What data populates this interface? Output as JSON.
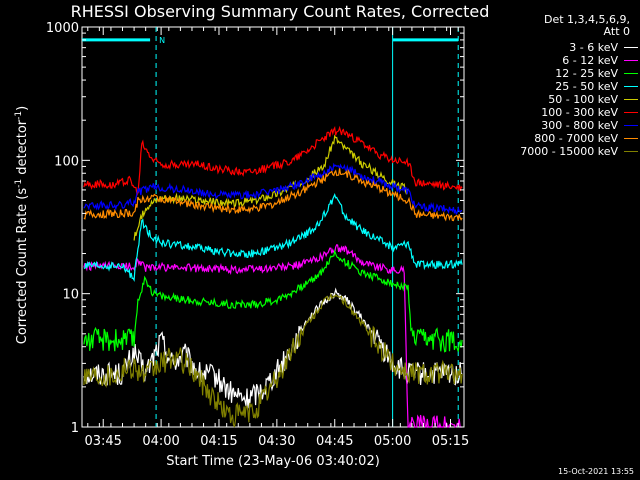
{
  "header": {
    "title": "RHESSI Observing Summary Count Rates, Corrected",
    "det_line1": "Det 1,3,4,5,6,9,",
    "det_line2": "Att 0"
  },
  "footer": {
    "stamp": "15-Oct-2021 13:55"
  },
  "axes": {
    "ylabel_main": "Corrected Count Rate (s",
    "ylabel_exp1": "-1",
    "ylabel_mid": " detector",
    "ylabel_exp2": "-1",
    "ylabel_end": ")",
    "xlabel": "Start Time (23-May-06 03:40:02)"
  },
  "chart_data": {
    "type": "line",
    "title": "RHESSI Observing Summary Count Rates, Corrected",
    "xlabel": "Start Time (23-May-06 03:40:02)",
    "ylabel": "Corrected Count Rate (s-1 detector-1)",
    "yscale": "log",
    "xlim_minutes": [
      219.5,
      318.5
    ],
    "ylim": [
      1,
      1000
    ],
    "x_ticks": [
      {
        "m": 225,
        "label": "03:45"
      },
      {
        "m": 240,
        "label": "04:00"
      },
      {
        "m": 255,
        "label": "04:15"
      },
      {
        "m": 270,
        "label": "04:30"
      },
      {
        "m": 285,
        "label": "04:45"
      },
      {
        "m": 300,
        "label": "05:00"
      },
      {
        "m": 315,
        "label": "05:15"
      }
    ],
    "y_ticks": [
      {
        "v": 1,
        "label": "1"
      },
      {
        "v": 10,
        "label": "10"
      },
      {
        "v": 100,
        "label": "100"
      },
      {
        "v": 1000,
        "label": "1000"
      }
    ],
    "night_flag": {
      "label": "N",
      "x_end": 238.7,
      "y": 800,
      "color": "#00ffff"
    },
    "flag_bar2": {
      "x_start": 300,
      "x_end": 317,
      "y": 800,
      "color": "#00ffff"
    },
    "markers": [
      {
        "x": 238.7,
        "style": "dashed",
        "color": "#00ffff"
      },
      {
        "x": 300,
        "style": "solid",
        "color": "#00ffff"
      },
      {
        "x": 317,
        "style": "dashed",
        "color": "#00ffff"
      }
    ],
    "series": [
      {
        "name": "3 - 6 keV",
        "color": "#ffffff",
        "points": [
          [
            220,
            2.5
          ],
          [
            226,
            2.5
          ],
          [
            230,
            2.5
          ],
          [
            233,
            3.6
          ],
          [
            236,
            2.5
          ],
          [
            240,
            4.5
          ],
          [
            243,
            3.0
          ],
          [
            246,
            3.5
          ],
          [
            250,
            2.5
          ],
          [
            254,
            2.4
          ],
          [
            258,
            1.8
          ],
          [
            262,
            1.6
          ],
          [
            266,
            1.9
          ],
          [
            270,
            2.6
          ],
          [
            274,
            4
          ],
          [
            278,
            6.5
          ],
          [
            282,
            8.5
          ],
          [
            285,
            10.2
          ],
          [
            288,
            9
          ],
          [
            292,
            6.5
          ],
          [
            296,
            4.5
          ],
          [
            300,
            3.0
          ],
          [
            302,
            2.7
          ],
          [
            304,
            2.5
          ],
          [
            318,
            2.5
          ]
        ]
      },
      {
        "name": "6 - 12 keV",
        "color": "#ff00ff",
        "points": [
          [
            220,
            16
          ],
          [
            233,
            16
          ],
          [
            234,
            18
          ],
          [
            236,
            15.5
          ],
          [
            240,
            15.8
          ],
          [
            250,
            15.5
          ],
          [
            260,
            15.2
          ],
          [
            268,
            15.5
          ],
          [
            274,
            16
          ],
          [
            280,
            18
          ],
          [
            284,
            21
          ],
          [
            286,
            22
          ],
          [
            288,
            21
          ],
          [
            292,
            17.5
          ],
          [
            296,
            16
          ],
          [
            300,
            15
          ],
          [
            303,
            15
          ],
          [
            304,
            1
          ],
          [
            318,
            1
          ]
        ]
      },
      {
        "name": "12 - 25 keV",
        "color": "#00ff00",
        "points": [
          [
            220,
            4.5
          ],
          [
            228,
            4.5
          ],
          [
            233,
            4.5
          ],
          [
            234,
            9
          ],
          [
            236,
            13
          ],
          [
            238,
            10
          ],
          [
            242,
            9.3
          ],
          [
            250,
            8.8
          ],
          [
            258,
            8.3
          ],
          [
            264,
            8.3
          ],
          [
            270,
            9
          ],
          [
            276,
            11
          ],
          [
            281,
            14
          ],
          [
            285,
            20
          ],
          [
            288,
            17
          ],
          [
            292,
            14.5
          ],
          [
            296,
            13.2
          ],
          [
            300,
            11.8
          ],
          [
            304,
            11
          ],
          [
            305,
            4.5
          ],
          [
            318,
            4.5
          ]
        ]
      },
      {
        "name": "25 - 50 keV",
        "color": "#00ffff",
        "points": [
          [
            220,
            16
          ],
          [
            224,
            16
          ],
          [
            230,
            16
          ],
          [
            232,
            14
          ],
          [
            233,
            13
          ],
          [
            235,
            35
          ],
          [
            237,
            28
          ],
          [
            240,
            24
          ],
          [
            250,
            22
          ],
          [
            258,
            20
          ],
          [
            264,
            20
          ],
          [
            270,
            22
          ],
          [
            276,
            26
          ],
          [
            281,
            33
          ],
          [
            285,
            55
          ],
          [
            288,
            37
          ],
          [
            292,
            30
          ],
          [
            296,
            26
          ],
          [
            300,
            22
          ],
          [
            304,
            24
          ],
          [
            306,
            16.5
          ],
          [
            318,
            16.5
          ]
        ]
      },
      {
        "name": "50 - 100 keV",
        "color": "#cccc00",
        "points": [
          [
            233,
            26
          ],
          [
            236,
            45
          ],
          [
            240,
            53
          ],
          [
            250,
            50
          ],
          [
            258,
            47
          ],
          [
            264,
            50
          ],
          [
            270,
            56
          ],
          [
            276,
            68
          ],
          [
            282,
            88
          ],
          [
            285,
            148
          ],
          [
            288,
            120
          ],
          [
            292,
            95
          ],
          [
            296,
            80
          ],
          [
            300,
            68
          ],
          [
            304,
            60
          ]
        ]
      },
      {
        "name": "100 - 300 keV",
        "color": "#ff0000",
        "points": [
          [
            220,
            66
          ],
          [
            228,
            66
          ],
          [
            232,
            72
          ],
          [
            234,
            55
          ],
          [
            235,
            135
          ],
          [
            238,
            100
          ],
          [
            241,
            93
          ],
          [
            250,
            93
          ],
          [
            256,
            85
          ],
          [
            262,
            82
          ],
          [
            268,
            88
          ],
          [
            274,
            100
          ],
          [
            280,
            132
          ],
          [
            284,
            160
          ],
          [
            286,
            168
          ],
          [
            288,
            158
          ],
          [
            292,
            135
          ],
          [
            296,
            112
          ],
          [
            300,
            100
          ],
          [
            304,
            96
          ],
          [
            306,
            68
          ],
          [
            318,
            62
          ]
        ]
      },
      {
        "name": "300 - 800 keV",
        "color": "#0000ff",
        "points": [
          [
            220,
            46
          ],
          [
            230,
            46
          ],
          [
            233,
            49
          ],
          [
            234,
            58
          ],
          [
            238,
            63
          ],
          [
            246,
            60
          ],
          [
            252,
            56
          ],
          [
            258,
            55
          ],
          [
            264,
            55
          ],
          [
            270,
            60
          ],
          [
            276,
            67
          ],
          [
            282,
            80
          ],
          [
            285,
            88
          ],
          [
            288,
            86
          ],
          [
            294,
            73
          ],
          [
            300,
            64
          ],
          [
            304,
            59
          ],
          [
            306,
            45
          ],
          [
            318,
            42
          ]
        ]
      },
      {
        "name": "800 - 7000 keV",
        "color": "#ff8c00",
        "points": [
          [
            220,
            39
          ],
          [
            230,
            40
          ],
          [
            233,
            40
          ],
          [
            234,
            50
          ],
          [
            238,
            53
          ],
          [
            246,
            48
          ],
          [
            252,
            45
          ],
          [
            258,
            43
          ],
          [
            264,
            43
          ],
          [
            270,
            48
          ],
          [
            276,
            58
          ],
          [
            282,
            72
          ],
          [
            285,
            82
          ],
          [
            288,
            80
          ],
          [
            294,
            66
          ],
          [
            300,
            56
          ],
          [
            304,
            50
          ],
          [
            306,
            39
          ],
          [
            318,
            37
          ]
        ]
      },
      {
        "name": "7000 - 15000 keV",
        "color": "#808000",
        "points": [
          [
            220,
            2.5
          ],
          [
            228,
            2.5
          ],
          [
            233,
            2.9
          ],
          [
            236,
            2.4
          ],
          [
            240,
            3.0
          ],
          [
            244,
            3.4
          ],
          [
            248,
            2.7
          ],
          [
            254,
            1.6
          ],
          [
            258,
            1.2
          ],
          [
            264,
            1.3
          ],
          [
            270,
            2.3
          ],
          [
            274,
            3.8
          ],
          [
            278,
            6
          ],
          [
            282,
            8.5
          ],
          [
            285,
            10
          ],
          [
            288,
            8.5
          ],
          [
            292,
            6
          ],
          [
            296,
            4.2
          ],
          [
            300,
            3.0
          ],
          [
            304,
            2.6
          ],
          [
            318,
            2.5
          ]
        ]
      }
    ]
  }
}
